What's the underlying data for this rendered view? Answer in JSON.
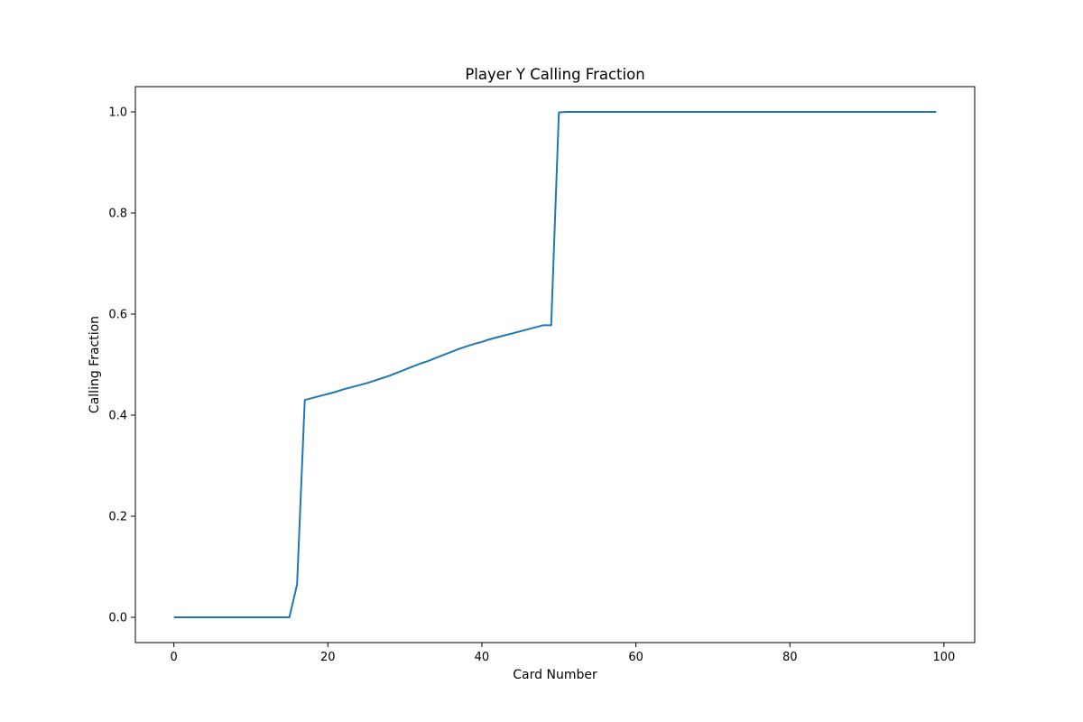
{
  "chart_data": {
    "type": "line",
    "title": "Player Y Calling Fraction",
    "xlabel": "Card Number",
    "ylabel": "Calling Fraction",
    "xlim": [
      -5,
      104
    ],
    "ylim": [
      -0.05,
      1.05
    ],
    "xticks": [
      0,
      20,
      40,
      60,
      80,
      100
    ],
    "xtick_labels": [
      "0",
      "20",
      "40",
      "60",
      "80",
      "100"
    ],
    "yticks": [
      0.0,
      0.2,
      0.4,
      0.6,
      0.8,
      1.0
    ],
    "ytick_labels": [
      "0.0",
      "0.2",
      "0.4",
      "0.6",
      "0.8",
      "1.0"
    ],
    "grid": false,
    "series": [
      {
        "color": "#1f77b4",
        "x": [
          0,
          1,
          2,
          3,
          4,
          5,
          6,
          7,
          8,
          9,
          10,
          11,
          12,
          13,
          14,
          15,
          16,
          17,
          18,
          19,
          20,
          21,
          22,
          23,
          24,
          25,
          26,
          27,
          28,
          29,
          30,
          31,
          32,
          33,
          34,
          35,
          36,
          37,
          38,
          39,
          40,
          41,
          42,
          43,
          44,
          45,
          46,
          47,
          48,
          49,
          50,
          51,
          52,
          53,
          54,
          55,
          56,
          57,
          58,
          59,
          60,
          61,
          62,
          63,
          64,
          65,
          66,
          67,
          68,
          69,
          70,
          71,
          72,
          73,
          74,
          75,
          76,
          77,
          78,
          79,
          80,
          81,
          82,
          83,
          84,
          85,
          86,
          87,
          88,
          89,
          90,
          91,
          92,
          93,
          94,
          95,
          96,
          97,
          98,
          99
        ],
        "y": [
          0.0,
          0.0,
          0.0,
          0.0,
          0.0,
          0.0,
          0.0,
          0.0,
          0.0,
          0.0,
          0.0,
          0.0,
          0.0,
          0.0,
          0.0,
          0.0,
          0.065,
          0.43,
          0.434,
          0.438,
          0.442,
          0.446,
          0.451,
          0.455,
          0.459,
          0.463,
          0.468,
          0.473,
          0.478,
          0.484,
          0.49,
          0.496,
          0.502,
          0.507,
          0.513,
          0.519,
          0.525,
          0.531,
          0.536,
          0.541,
          0.545,
          0.55,
          0.554,
          0.558,
          0.562,
          0.566,
          0.57,
          0.574,
          0.578,
          0.578,
          0.999,
          1.0,
          1.0,
          1.0,
          1.0,
          1.0,
          1.0,
          1.0,
          1.0,
          1.0,
          1.0,
          1.0,
          1.0,
          1.0,
          1.0,
          1.0,
          1.0,
          1.0,
          1.0,
          1.0,
          1.0,
          1.0,
          1.0,
          1.0,
          1.0,
          1.0,
          1.0,
          1.0,
          1.0,
          1.0,
          1.0,
          1.0,
          1.0,
          1.0,
          1.0,
          1.0,
          1.0,
          1.0,
          1.0,
          1.0,
          1.0,
          1.0,
          1.0,
          1.0,
          1.0,
          1.0,
          1.0,
          1.0,
          1.0,
          1.0
        ]
      }
    ]
  }
}
